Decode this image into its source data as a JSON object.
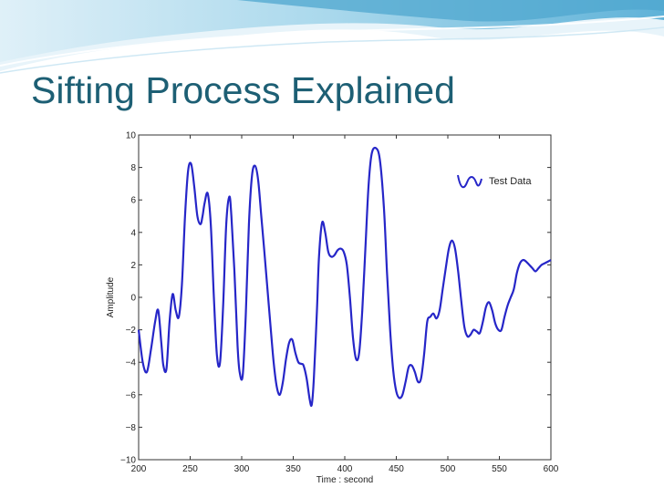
{
  "slide": {
    "title": "Sifting Process Explained"
  },
  "colors": {
    "title": "#1d5f74",
    "series": "#2626c8",
    "wave_light": "#cfe8f4",
    "wave_mid": "#8fcbe4",
    "wave_dark": "#4fa7cf"
  },
  "chart_data": {
    "type": "line",
    "xlabel": "Time : second",
    "ylabel": "Amplitude",
    "xlim": [
      200,
      600
    ],
    "ylim": [
      -10,
      10
    ],
    "xticks": [
      {
        "value": 200,
        "label": "200"
      },
      {
        "value": 250,
        "label": "250"
      },
      {
        "value": 300,
        "label": "300"
      },
      {
        "value": 350,
        "label": "350"
      },
      {
        "value": 400,
        "label": "400"
      },
      {
        "value": 450,
        "label": "450"
      },
      {
        "value": 500,
        "label": "500"
      },
      {
        "value": 550,
        "label": "550"
      },
      {
        "value": 600,
        "label": "600"
      }
    ],
    "yticks": [
      {
        "value": 10,
        "label": "10"
      },
      {
        "value": 8,
        "label": "8"
      },
      {
        "value": 6,
        "label": "6"
      },
      {
        "value": 4,
        "label": "4"
      },
      {
        "value": 2,
        "label": "2"
      },
      {
        "value": 0,
        "label": "0"
      },
      {
        "value": -2,
        "label": "−2"
      },
      {
        "value": -4,
        "label": "−4"
      },
      {
        "value": -6,
        "label": "−6"
      },
      {
        "value": -8,
        "label": "−8"
      },
      {
        "value": -10,
        "label": "−10"
      }
    ],
    "grid": false,
    "legend": {
      "position": "top-right",
      "entries": [
        "Test Data"
      ]
    },
    "series": [
      {
        "name": "Test Data",
        "x": [
          200,
          204,
          208,
          212,
          216,
          219,
          222,
          224,
          227,
          230,
          233,
          236,
          239,
          242,
          245,
          248,
          251,
          254,
          257,
          260,
          262,
          264,
          267,
          270,
          273,
          276,
          279,
          282,
          285,
          288,
          290,
          293,
          296,
          298,
          301,
          304,
          307,
          310,
          313,
          316,
          319,
          322,
          325,
          328,
          331,
          334,
          337,
          340,
          343,
          346,
          349,
          352,
          355,
          358,
          360,
          363,
          366,
          368,
          370,
          373,
          375,
          378,
          381,
          384,
          387,
          390,
          393,
          396,
          399,
          402,
          405,
          408,
          411,
          414,
          417,
          420,
          423,
          426,
          430,
          434,
          438,
          441,
          444,
          447,
          450,
          453,
          456,
          459,
          462,
          465,
          468,
          471,
          474,
          477,
          480,
          483,
          486,
          489,
          492,
          495,
          498,
          501,
          504,
          507,
          510,
          513,
          516,
          519,
          522,
          525,
          528,
          531,
          534,
          537,
          540,
          543,
          546,
          549,
          552,
          555,
          558,
          561,
          564,
          567,
          570,
          573,
          576,
          579,
          582,
          585,
          588,
          591,
          594,
          597,
          600
        ],
        "y": [
          -2.0,
          -4.0,
          -4.6,
          -3.2,
          -1.5,
          -0.8,
          -2.8,
          -4.2,
          -4.4,
          -1.5,
          0.2,
          -0.8,
          -1.2,
          0.8,
          5.0,
          7.8,
          8.2,
          6.8,
          5.0,
          4.5,
          5.0,
          5.8,
          6.4,
          4.5,
          0.0,
          -3.6,
          -4.0,
          -0.5,
          4.5,
          6.2,
          5.0,
          1.5,
          -3.0,
          -4.6,
          -4.8,
          -1.0,
          4.5,
          7.5,
          8.1,
          7.2,
          5.0,
          2.8,
          0.5,
          -1.8,
          -4.0,
          -5.5,
          -6.0,
          -5.2,
          -3.8,
          -2.8,
          -2.6,
          -3.4,
          -4.0,
          -4.1,
          -4.2,
          -5.0,
          -6.3,
          -6.6,
          -5.0,
          -0.8,
          2.5,
          4.6,
          4.0,
          2.8,
          2.5,
          2.6,
          2.9,
          3.0,
          2.8,
          2.0,
          0.0,
          -2.5,
          -3.8,
          -3.4,
          -0.8,
          3.0,
          6.8,
          8.8,
          9.2,
          8.5,
          5.5,
          1.5,
          -2.0,
          -4.5,
          -5.8,
          -6.2,
          -6.0,
          -5.2,
          -4.3,
          -4.2,
          -4.6,
          -5.2,
          -5.0,
          -3.5,
          -1.5,
          -1.2,
          -1.0,
          -1.3,
          -0.8,
          0.5,
          1.8,
          3.0,
          3.5,
          3.0,
          1.6,
          -0.2,
          -1.8,
          -2.4,
          -2.3,
          -2.0,
          -2.1,
          -2.2,
          -1.5,
          -0.6,
          -0.3,
          -0.8,
          -1.6,
          -2.0,
          -2.0,
          -1.2,
          -0.5,
          0.0,
          0.5,
          1.5,
          2.1,
          2.3,
          2.2,
          2.0,
          1.8,
          1.6,
          1.8,
          2.0,
          2.1,
          2.2,
          2.3
        ]
      }
    ]
  }
}
